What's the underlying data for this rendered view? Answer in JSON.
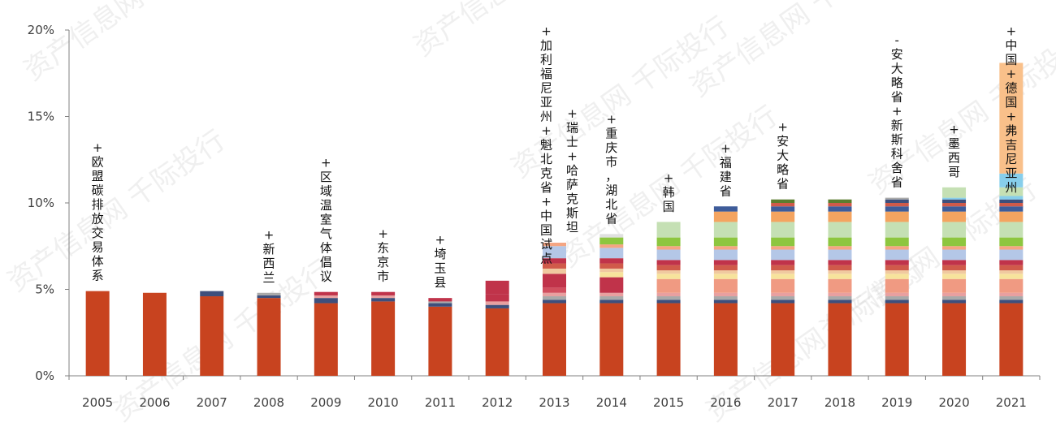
{
  "chart_data": {
    "type": "bar",
    "stacked": true,
    "categories": [
      "2005",
      "2006",
      "2007",
      "2008",
      "2009",
      "2010",
      "2011",
      "2012",
      "2013",
      "2014",
      "2015",
      "2016",
      "2017",
      "2018",
      "2019",
      "2020",
      "2021"
    ],
    "ylim": [
      0,
      20
    ],
    "yticks": [
      "0%",
      "5%",
      "10%",
      "15%",
      "20%"
    ],
    "grid": false,
    "legend": "none",
    "segments": [
      [
        {
          "v": 4.9,
          "c": "#C8431F"
        }
      ],
      [
        {
          "v": 4.8,
          "c": "#C8431F"
        }
      ],
      [
        {
          "v": 4.6,
          "c": "#C8431F"
        },
        {
          "v": 0.3,
          "c": "#3E4F7C"
        }
      ],
      [
        {
          "v": 4.5,
          "c": "#C8431F"
        },
        {
          "v": 0.15,
          "c": "#3E4F7C"
        },
        {
          "v": 0.15,
          "c": "#A9A9A9"
        }
      ],
      [
        {
          "v": 4.2,
          "c": "#C8431F"
        },
        {
          "v": 0.3,
          "c": "#3E4F7C"
        },
        {
          "v": 0.15,
          "c": "#E8A0A0"
        },
        {
          "v": 0.2,
          "c": "#C0334A"
        }
      ],
      [
        {
          "v": 4.3,
          "c": "#C8431F"
        },
        {
          "v": 0.2,
          "c": "#3E4F7C"
        },
        {
          "v": 0.15,
          "c": "#E8A0A0"
        },
        {
          "v": 0.2,
          "c": "#C0334A"
        }
      ],
      [
        {
          "v": 4.0,
          "c": "#C8431F"
        },
        {
          "v": 0.2,
          "c": "#3E4F7C"
        },
        {
          "v": 0.1,
          "c": "#A9A9A9"
        },
        {
          "v": 0.2,
          "c": "#C0334A"
        }
      ],
      [
        {
          "v": 3.9,
          "c": "#C8431F"
        },
        {
          "v": 0.2,
          "c": "#3E4F7C"
        },
        {
          "v": 0.2,
          "c": "#E8A0A0"
        },
        {
          "v": 0.4,
          "c": "#C0334A"
        },
        {
          "v": 0.8,
          "c": "#C0334A"
        }
      ],
      [
        {
          "v": 4.2,
          "c": "#C8431F"
        },
        {
          "v": 0.2,
          "c": "#3E4F7C"
        },
        {
          "v": 0.2,
          "c": "#A9A9A9"
        },
        {
          "v": 0.2,
          "c": "#E8A0A0"
        },
        {
          "v": 0.3,
          "c": "#D14F5F"
        },
        {
          "v": 0.8,
          "c": "#C0334A"
        },
        {
          "v": 0.3,
          "c": "#F0C9A0"
        },
        {
          "v": 0.3,
          "c": "#D05A4A"
        },
        {
          "v": 0.3,
          "c": "#C0334A"
        },
        {
          "v": 0.7,
          "c": "#B4C7E7"
        },
        {
          "v": 0.2,
          "c": "#F4A582"
        }
      ],
      [
        {
          "v": 4.2,
          "c": "#C8431F"
        },
        {
          "v": 0.2,
          "c": "#3E4F7C"
        },
        {
          "v": 0.2,
          "c": "#A9A9A9"
        },
        {
          "v": 0.2,
          "c": "#E8A0A0"
        },
        {
          "v": 0.9,
          "c": "#C0334A"
        },
        {
          "v": 0.3,
          "c": "#F7E39C"
        },
        {
          "v": 0.2,
          "c": "#F0C9A0"
        },
        {
          "v": 0.3,
          "c": "#D05A4A"
        },
        {
          "v": 0.3,
          "c": "#C0334A"
        },
        {
          "v": 0.6,
          "c": "#B4C7E7"
        },
        {
          "v": 0.2,
          "c": "#F4A582"
        },
        {
          "v": 0.4,
          "c": "#8DC63F"
        },
        {
          "v": 0.2,
          "c": "#E0E0E0"
        }
      ],
      [
        {
          "v": 4.2,
          "c": "#C8431F"
        },
        {
          "v": 0.2,
          "c": "#3E4F7C"
        },
        {
          "v": 0.2,
          "c": "#A9A9A9"
        },
        {
          "v": 0.2,
          "c": "#E8A0A0"
        },
        {
          "v": 0.8,
          "c": "#F09A82"
        },
        {
          "v": 0.3,
          "c": "#F7E39C"
        },
        {
          "v": 0.2,
          "c": "#F0C9A0"
        },
        {
          "v": 0.3,
          "c": "#D05A4A"
        },
        {
          "v": 0.3,
          "c": "#C0334A"
        },
        {
          "v": 0.6,
          "c": "#B4C7E7"
        },
        {
          "v": 0.2,
          "c": "#F4A582"
        },
        {
          "v": 0.5,
          "c": "#8DC63F"
        },
        {
          "v": 0.9,
          "c": "#C5E0B4"
        }
      ],
      [
        {
          "v": 4.2,
          "c": "#C8431F"
        },
        {
          "v": 0.2,
          "c": "#3E4F7C"
        },
        {
          "v": 0.2,
          "c": "#A9A9A9"
        },
        {
          "v": 0.2,
          "c": "#E8A0A0"
        },
        {
          "v": 0.8,
          "c": "#F09A82"
        },
        {
          "v": 0.3,
          "c": "#F7E39C"
        },
        {
          "v": 0.2,
          "c": "#F0C9A0"
        },
        {
          "v": 0.3,
          "c": "#D05A4A"
        },
        {
          "v": 0.3,
          "c": "#C0334A"
        },
        {
          "v": 0.6,
          "c": "#B4C7E7"
        },
        {
          "v": 0.2,
          "c": "#F4A582"
        },
        {
          "v": 0.5,
          "c": "#8DC63F"
        },
        {
          "v": 0.9,
          "c": "#C5E0B4"
        },
        {
          "v": 0.6,
          "c": "#F4A460"
        },
        {
          "v": 0.3,
          "c": "#3E5C9A"
        }
      ],
      [
        {
          "v": 4.2,
          "c": "#C8431F"
        },
        {
          "v": 0.2,
          "c": "#3E4F7C"
        },
        {
          "v": 0.2,
          "c": "#A9A9A9"
        },
        {
          "v": 0.2,
          "c": "#E8A0A0"
        },
        {
          "v": 0.8,
          "c": "#F09A82"
        },
        {
          "v": 0.3,
          "c": "#F7E39C"
        },
        {
          "v": 0.2,
          "c": "#F0C9A0"
        },
        {
          "v": 0.3,
          "c": "#D05A4A"
        },
        {
          "v": 0.3,
          "c": "#C0334A"
        },
        {
          "v": 0.6,
          "c": "#B4C7E7"
        },
        {
          "v": 0.2,
          "c": "#F4A582"
        },
        {
          "v": 0.5,
          "c": "#8DC63F"
        },
        {
          "v": 0.9,
          "c": "#C5E0B4"
        },
        {
          "v": 0.6,
          "c": "#F4A460"
        },
        {
          "v": 0.3,
          "c": "#3E5C9A"
        },
        {
          "v": 0.2,
          "c": "#D05A4A"
        },
        {
          "v": 0.2,
          "c": "#5B7D2E"
        }
      ],
      [
        {
          "v": 4.2,
          "c": "#C8431F"
        },
        {
          "v": 0.2,
          "c": "#3E4F7C"
        },
        {
          "v": 0.2,
          "c": "#A9A9A9"
        },
        {
          "v": 0.2,
          "c": "#E8A0A0"
        },
        {
          "v": 0.8,
          "c": "#F09A82"
        },
        {
          "v": 0.3,
          "c": "#F7E39C"
        },
        {
          "v": 0.2,
          "c": "#F0C9A0"
        },
        {
          "v": 0.3,
          "c": "#D05A4A"
        },
        {
          "v": 0.3,
          "c": "#C0334A"
        },
        {
          "v": 0.6,
          "c": "#B4C7E7"
        },
        {
          "v": 0.2,
          "c": "#F4A582"
        },
        {
          "v": 0.5,
          "c": "#8DC63F"
        },
        {
          "v": 0.9,
          "c": "#C5E0B4"
        },
        {
          "v": 0.6,
          "c": "#F4A460"
        },
        {
          "v": 0.3,
          "c": "#3E5C9A"
        },
        {
          "v": 0.2,
          "c": "#D05A4A"
        },
        {
          "v": 0.2,
          "c": "#5B7D2E"
        }
      ],
      [
        {
          "v": 4.2,
          "c": "#C8431F"
        },
        {
          "v": 0.2,
          "c": "#3E4F7C"
        },
        {
          "v": 0.2,
          "c": "#A9A9A9"
        },
        {
          "v": 0.2,
          "c": "#E8A0A0"
        },
        {
          "v": 0.8,
          "c": "#F09A82"
        },
        {
          "v": 0.3,
          "c": "#F7E39C"
        },
        {
          "v": 0.2,
          "c": "#F0C9A0"
        },
        {
          "v": 0.3,
          "c": "#D05A4A"
        },
        {
          "v": 0.3,
          "c": "#C0334A"
        },
        {
          "v": 0.6,
          "c": "#B4C7E7"
        },
        {
          "v": 0.2,
          "c": "#F4A582"
        },
        {
          "v": 0.5,
          "c": "#8DC63F"
        },
        {
          "v": 0.9,
          "c": "#C5E0B4"
        },
        {
          "v": 0.6,
          "c": "#F4A460"
        },
        {
          "v": 0.3,
          "c": "#3E5C9A"
        },
        {
          "v": 0.2,
          "c": "#D05A4A"
        },
        {
          "v": 0.2,
          "c": "#3E4F7C"
        },
        {
          "v": 0.1,
          "c": "#A9A9A9"
        }
      ],
      [
        {
          "v": 4.2,
          "c": "#C8431F"
        },
        {
          "v": 0.2,
          "c": "#3E4F7C"
        },
        {
          "v": 0.2,
          "c": "#A9A9A9"
        },
        {
          "v": 0.2,
          "c": "#E8A0A0"
        },
        {
          "v": 0.8,
          "c": "#F09A82"
        },
        {
          "v": 0.3,
          "c": "#F7E39C"
        },
        {
          "v": 0.2,
          "c": "#F0C9A0"
        },
        {
          "v": 0.3,
          "c": "#D05A4A"
        },
        {
          "v": 0.3,
          "c": "#C0334A"
        },
        {
          "v": 0.6,
          "c": "#B4C7E7"
        },
        {
          "v": 0.2,
          "c": "#F4A582"
        },
        {
          "v": 0.5,
          "c": "#8DC63F"
        },
        {
          "v": 0.9,
          "c": "#C5E0B4"
        },
        {
          "v": 0.6,
          "c": "#F4A460"
        },
        {
          "v": 0.3,
          "c": "#3E5C9A"
        },
        {
          "v": 0.2,
          "c": "#D05A4A"
        },
        {
          "v": 0.2,
          "c": "#3E4F7C"
        },
        {
          "v": 0.1,
          "c": "#87CEEB"
        },
        {
          "v": 0.6,
          "c": "#C5E0B4"
        }
      ],
      [
        {
          "v": 4.2,
          "c": "#C8431F"
        },
        {
          "v": 0.2,
          "c": "#3E4F7C"
        },
        {
          "v": 0.2,
          "c": "#A9A9A9"
        },
        {
          "v": 0.2,
          "c": "#E8A0A0"
        },
        {
          "v": 0.8,
          "c": "#F09A82"
        },
        {
          "v": 0.3,
          "c": "#F7E39C"
        },
        {
          "v": 0.2,
          "c": "#F0C9A0"
        },
        {
          "v": 0.3,
          "c": "#D05A4A"
        },
        {
          "v": 0.3,
          "c": "#C0334A"
        },
        {
          "v": 0.6,
          "c": "#B4C7E7"
        },
        {
          "v": 0.2,
          "c": "#F4A582"
        },
        {
          "v": 0.5,
          "c": "#8DC63F"
        },
        {
          "v": 0.9,
          "c": "#C5E0B4"
        },
        {
          "v": 0.6,
          "c": "#F4A460"
        },
        {
          "v": 0.3,
          "c": "#3E5C9A"
        },
        {
          "v": 0.2,
          "c": "#D05A4A"
        },
        {
          "v": 0.2,
          "c": "#3E4F7C"
        },
        {
          "v": 0.2,
          "c": "#87CEEB"
        },
        {
          "v": 0.5,
          "c": "#C5E0B4"
        },
        {
          "v": 0.8,
          "c": "#87CEEB"
        },
        {
          "v": 6.4,
          "c": "#F9C08A"
        }
      ]
    ],
    "annotations": [
      {
        "category": "2005",
        "text": "+欧盟碳排放交易体系"
      },
      {
        "category": "2008",
        "text": "+新西兰"
      },
      {
        "category": "2009",
        "text": "+区域温室气体倡议"
      },
      {
        "category": "2010",
        "text": "+东京市"
      },
      {
        "category": "2011",
        "text": "+埼玉县"
      },
      {
        "category": "2013",
        "text": "+加利福尼亚州+魁北克省+中国试点"
      },
      {
        "category": "2013",
        "text": "+瑞士+哈萨克斯坦"
      },
      {
        "category": "2014",
        "text": "+重庆市，湖北省"
      },
      {
        "category": "2015",
        "text": "+韩国"
      },
      {
        "category": "2016",
        "text": "+福建省"
      },
      {
        "category": "2017",
        "text": "+安大略省"
      },
      {
        "category": "2019",
        "text": "-安大略省+新斯科舍省"
      },
      {
        "category": "2020",
        "text": "+墨西哥"
      },
      {
        "category": "2021",
        "text": "+中国+德国+弗吉尼亚州"
      }
    ]
  },
  "watermark": "资产信息网 千际投行"
}
